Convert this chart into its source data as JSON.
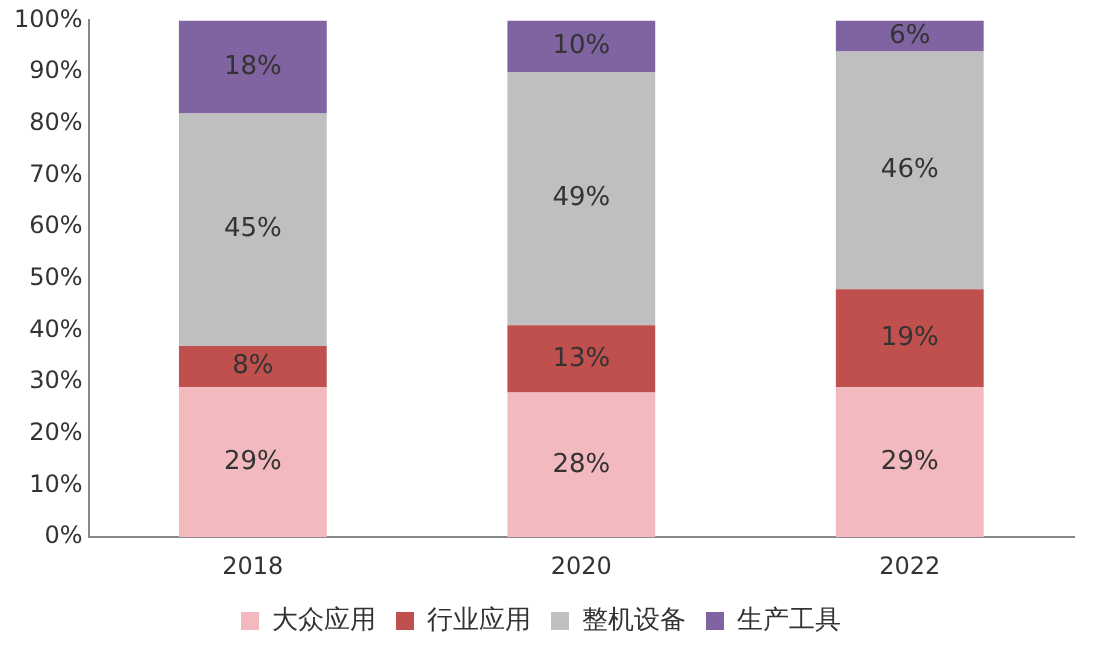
{
  "chart_data": {
    "type": "bar",
    "stacked": true,
    "categories": [
      "2018",
      "2020",
      "2022"
    ],
    "series": [
      {
        "name": "大众应用",
        "color": "#f2b9be",
        "values": [
          29,
          28,
          29
        ],
        "value_labels": [
          "29%",
          "28%",
          "29%"
        ]
      },
      {
        "name": "行业应用",
        "color": "#c0504d",
        "values": [
          8,
          13,
          19
        ],
        "value_labels": [
          "8%",
          "13%",
          "19%"
        ]
      },
      {
        "name": "整机设备",
        "color": "#bfbfbf",
        "values": [
          45,
          49,
          46
        ],
        "value_labels": [
          "45%",
          "49%",
          "46%"
        ]
      },
      {
        "name": "生产工具",
        "color": "#8064a2",
        "values": [
          18,
          10,
          6
        ],
        "value_labels": [
          "18%",
          "10%",
          "6%"
        ]
      }
    ],
    "ylim": [
      0,
      100
    ],
    "yticks": [
      {
        "value": 0,
        "label": "0%"
      },
      {
        "value": 10,
        "label": "10%"
      },
      {
        "value": 20,
        "label": "20%"
      },
      {
        "value": 30,
        "label": "30%"
      },
      {
        "value": 40,
        "label": "40%"
      },
      {
        "value": 50,
        "label": "50%"
      },
      {
        "value": 60,
        "label": "60%"
      },
      {
        "value": 70,
        "label": "70%"
      },
      {
        "value": 80,
        "label": "80%"
      },
      {
        "value": 90,
        "label": "90%"
      },
      {
        "value": 100,
        "label": "100%"
      }
    ],
    "grid": false,
    "legend": "bottom"
  }
}
